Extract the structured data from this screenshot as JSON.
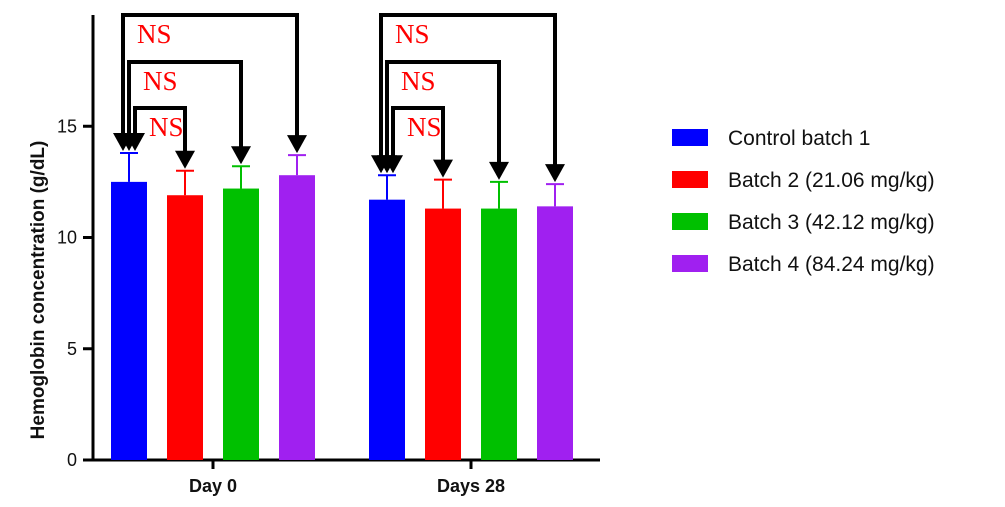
{
  "chart_data": {
    "type": "bar",
    "title": "",
    "xlabel": "",
    "ylabel": "Hemoglobin concentration (g/dL)",
    "ylim": [
      0,
      20
    ],
    "yticks": [
      0,
      5,
      10,
      15
    ],
    "categories": [
      "Day 0",
      "Days 28"
    ],
    "series": [
      {
        "name": "Control batch 1",
        "color": "#0000ff",
        "values": [
          12.5,
          11.7
        ],
        "errors": [
          1.3,
          1.1
        ]
      },
      {
        "name": "Batch 2 (21.06 mg/kg)",
        "color": "#ff0000",
        "values": [
          11.9,
          11.3
        ],
        "errors": [
          1.1,
          1.3
        ]
      },
      {
        "name": "Batch 3 (42.12 mg/kg)",
        "color": "#00c000",
        "values": [
          12.2,
          11.3
        ],
        "errors": [
          1.0,
          1.2
        ]
      },
      {
        "name": "Batch 4 (84.24 mg/kg)",
        "color": "#a020f0",
        "values": [
          12.8,
          11.4
        ],
        "errors": [
          0.9,
          1.0
        ]
      }
    ],
    "annotations": [
      {
        "category": 0,
        "from_series": 0,
        "to_series": 1,
        "label": "NS",
        "level": 1
      },
      {
        "category": 0,
        "from_series": 0,
        "to_series": 2,
        "label": "NS",
        "level": 2
      },
      {
        "category": 0,
        "from_series": 0,
        "to_series": 3,
        "label": "NS",
        "level": 3
      },
      {
        "category": 1,
        "from_series": 0,
        "to_series": 1,
        "label": "NS",
        "level": 1
      },
      {
        "category": 1,
        "from_series": 0,
        "to_series": 2,
        "label": "NS",
        "level": 2
      },
      {
        "category": 1,
        "from_series": 0,
        "to_series": 3,
        "label": "NS",
        "level": 3
      }
    ],
    "annotation_color": "#ff0000",
    "grid": false,
    "legend_position": "right"
  }
}
